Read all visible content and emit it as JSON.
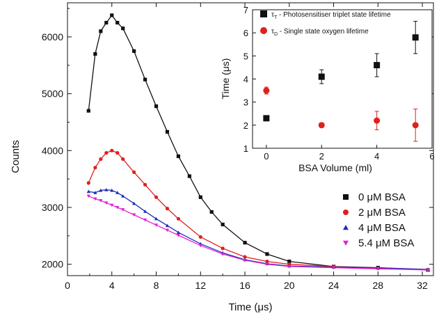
{
  "chart_data": [
    {
      "type": "scatter",
      "xlabel": "Time (μs)",
      "ylabel": "Counts",
      "xlim": [
        0,
        33
      ],
      "ylim": [
        1800,
        6600
      ],
      "x_ticks": [
        "0",
        "4",
        "8",
        "12",
        "16",
        "20",
        "24",
        "28",
        "32"
      ],
      "y_ticks": [
        "2000",
        "3000",
        "4000",
        "5000",
        "6000"
      ],
      "legend_position": "bottom-right",
      "grid": false,
      "series": [
        {
          "name": "0 μM BSA",
          "color": "#111111",
          "marker": "square",
          "x": [
            1.9,
            2.5,
            3.0,
            3.5,
            4.0,
            4.5,
            5.0,
            6.0,
            7.0,
            8.0,
            9.0,
            10.0,
            11.0,
            12.0,
            13.0,
            14.0,
            16.0,
            18.0,
            20.0,
            24.0,
            28.0,
            32.5
          ],
          "y": [
            4700,
            5700,
            6100,
            6250,
            6380,
            6250,
            6150,
            5750,
            5250,
            4780,
            4330,
            3900,
            3550,
            3180,
            2920,
            2700,
            2380,
            2180,
            2050,
            1960,
            1940,
            1900
          ]
        },
        {
          "name": "2 μM BSA",
          "color": "#e0201a",
          "marker": "circle",
          "x": [
            1.9,
            2.5,
            3.0,
            3.5,
            4.0,
            4.5,
            5.0,
            6.0,
            7.0,
            8.0,
            9.0,
            10.0,
            12.0,
            14.0,
            16.0,
            18.0,
            20.0,
            24.0,
            28.0,
            32.5
          ],
          "y": [
            3430,
            3700,
            3850,
            3960,
            4000,
            3960,
            3850,
            3620,
            3400,
            3180,
            2980,
            2800,
            2480,
            2280,
            2130,
            2050,
            2000,
            1960,
            1930,
            1900
          ]
        },
        {
          "name": "4 μM BSA",
          "color": "#1c2fb8",
          "marker": "triangle-up",
          "x": [
            1.9,
            2.5,
            3.0,
            3.5,
            4.0,
            4.5,
            5.0,
            6.0,
            7.0,
            8.0,
            9.0,
            10.0,
            12.0,
            14.0,
            16.0,
            18.0,
            20.0,
            24.0,
            28.0,
            32.5
          ],
          "y": [
            3280,
            3260,
            3300,
            3310,
            3300,
            3260,
            3200,
            3070,
            2930,
            2800,
            2680,
            2560,
            2360,
            2200,
            2080,
            2010,
            1970,
            1950,
            1940,
            1910
          ]
        },
        {
          "name": "5.4 μM BSA",
          "color": "#e620d6",
          "marker": "triangle-down",
          "x": [
            1.9,
            2.5,
            3.0,
            3.5,
            4.0,
            4.5,
            5.0,
            6.0,
            7.0,
            8.0,
            9.0,
            10.0,
            12.0,
            14.0,
            16.0,
            18.0,
            20.0,
            24.0,
            28.0,
            32.5
          ],
          "y": [
            3200,
            3150,
            3120,
            3080,
            3040,
            3000,
            2960,
            2870,
            2780,
            2690,
            2600,
            2510,
            2330,
            2180,
            2070,
            2000,
            1960,
            1940,
            1920,
            1900
          ]
        }
      ]
    },
    {
      "type": "scatter",
      "xlabel": "BSA Volume (ml)",
      "ylabel": "Time (μs)",
      "xlim": [
        -0.5,
        6
      ],
      "ylim": [
        1,
        7
      ],
      "x_ticks": [
        "0",
        "2",
        "4",
        "6"
      ],
      "y_ticks": [
        "1",
        "2",
        "3",
        "4",
        "5",
        "6",
        "7"
      ],
      "legend_position": "top",
      "grid": false,
      "series": [
        {
          "name": "τT - Photosensitiser triplet state lifetime",
          "color": "#111111",
          "marker": "square",
          "x": [
            0,
            2,
            4,
            5.4
          ],
          "y": [
            2.3,
            4.1,
            4.6,
            5.8
          ],
          "error": [
            0.0,
            0.3,
            0.5,
            0.7
          ]
        },
        {
          "name": "τD - Single state oxygen lifetime",
          "color": "#e0201a",
          "marker": "circle",
          "x": [
            0,
            2,
            4,
            5.4
          ],
          "y": [
            3.5,
            2.0,
            2.2,
            2.0
          ],
          "error": [
            0.15,
            0.1,
            0.4,
            0.7
          ]
        }
      ]
    }
  ],
  "legend_main": [
    {
      "label": "0 μM BSA"
    },
    {
      "label": "2 μM BSA"
    },
    {
      "label": "4 μM BSA"
    },
    {
      "label": "5.4 μM BSA"
    }
  ],
  "legend_inset": [
    {
      "sym": "τ",
      "sub": "T",
      "label": " - Photosensitiser triplet state lifetime"
    },
    {
      "sym": "τ",
      "sub": "D",
      "label": " - Single state oxygen lifetime"
    }
  ]
}
